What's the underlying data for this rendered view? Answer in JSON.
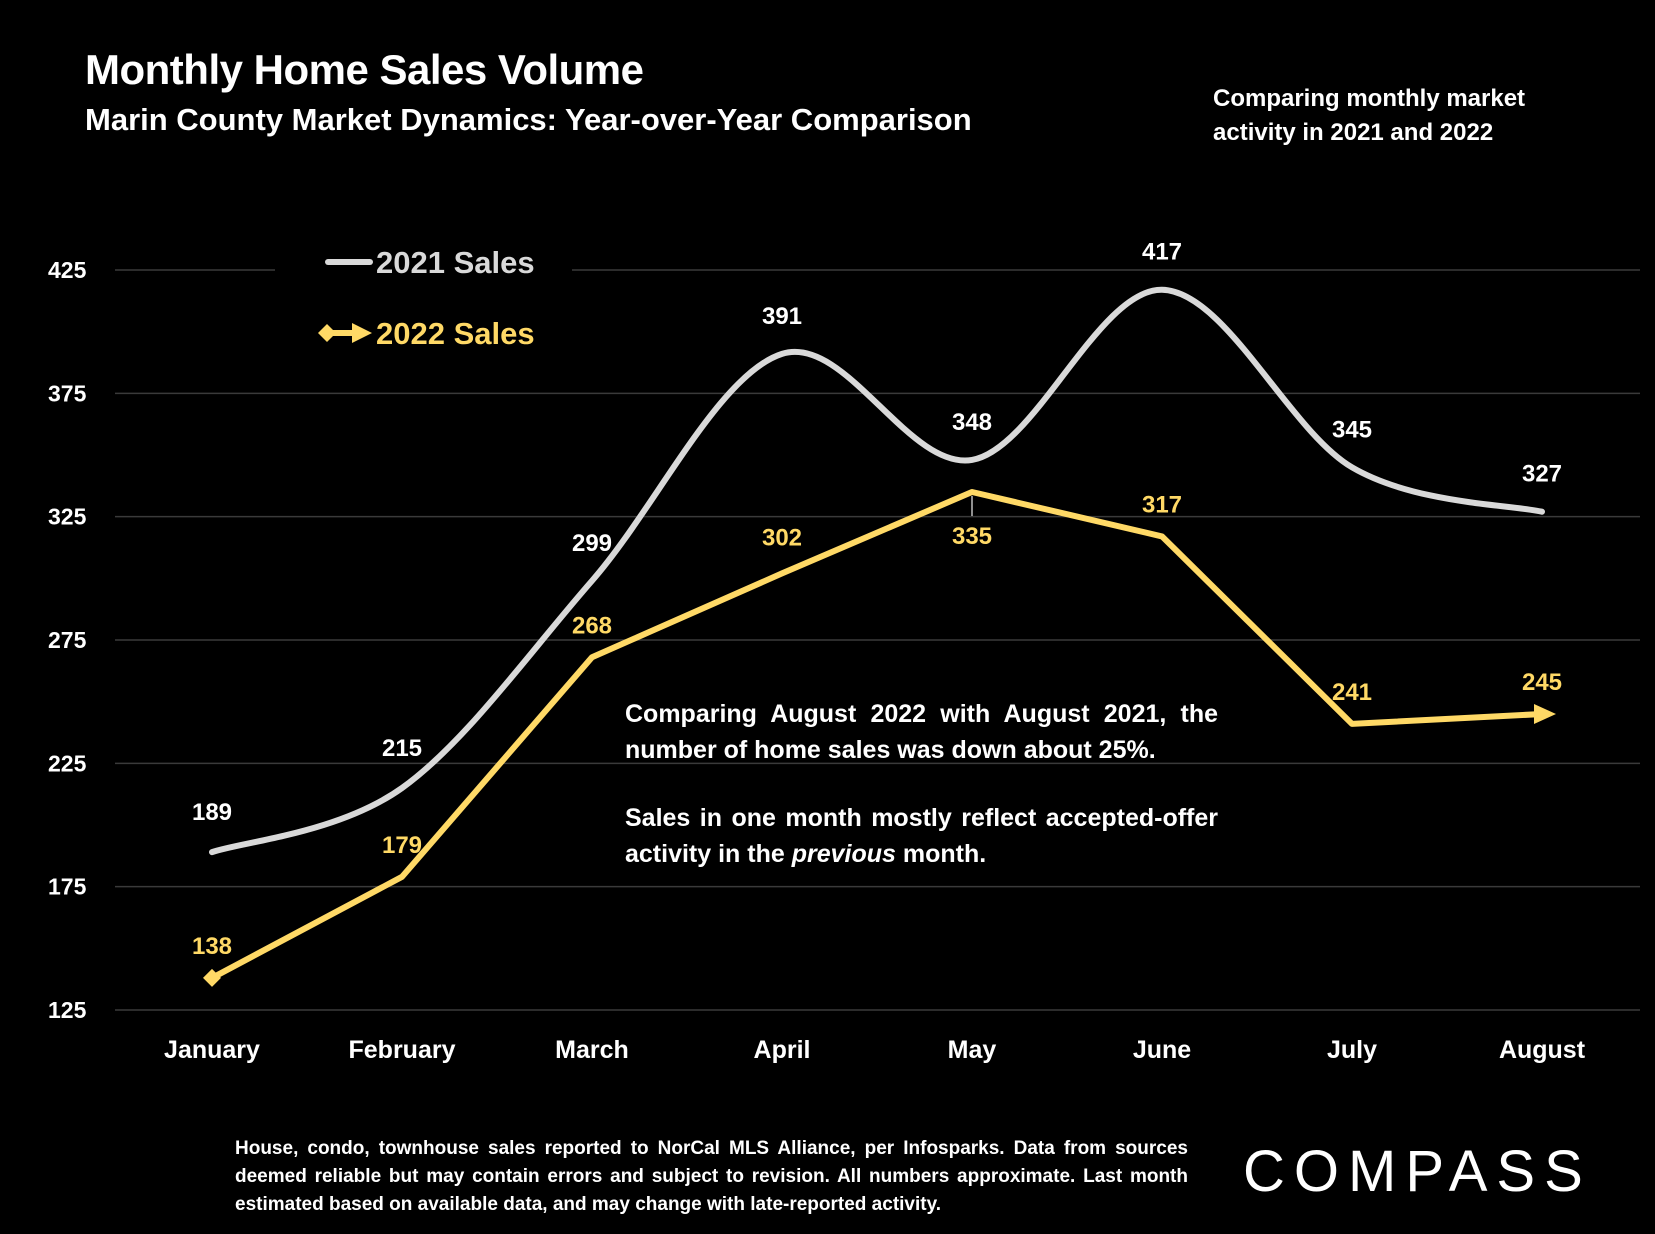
{
  "header": {
    "title": "Monthly Home Sales Volume",
    "subtitle": "Marin County Market Dynamics: Year-over-Year Comparison",
    "side_note": "Comparing monthly market activity in 2021 and 2022"
  },
  "annotation": {
    "para1": "Comparing August 2022 with August 2021, the number of home sales was down about 25%.",
    "para2_before": "Sales in one month mostly reflect accepted-offer activity in the ",
    "para2_em": "previous",
    "para2_after": " month."
  },
  "footnote": "House, condo, townhouse sales reported to NorCal MLS Alliance, per Infosparks. Data from sources deemed reliable but may contain errors and subject to revision. All numbers approximate. Last month estimated based on available data, and may change with late-reported activity.",
  "logo": "COMPASS",
  "colors": {
    "series_2021": "#d9d9d9",
    "series_2022": "#ffd966",
    "grid": "#3a3a3a",
    "background": "#000000"
  },
  "chart_data": {
    "type": "line",
    "categories": [
      "January",
      "February",
      "March",
      "April",
      "May",
      "June",
      "July",
      "August"
    ],
    "series": [
      {
        "name": "2021 Sales",
        "values": [
          189,
          215,
          299,
          391,
          348,
          417,
          345,
          327
        ],
        "smooth": true
      },
      {
        "name": "2022 Sales",
        "values": [
          138,
          179,
          268,
          302,
          335,
          317,
          241,
          245
        ],
        "smooth": false
      }
    ],
    "yticks": [
      125,
      175,
      225,
      275,
      325,
      375,
      425
    ],
    "ylim": [
      125,
      425
    ],
    "grid": true,
    "legend": "top-left"
  }
}
